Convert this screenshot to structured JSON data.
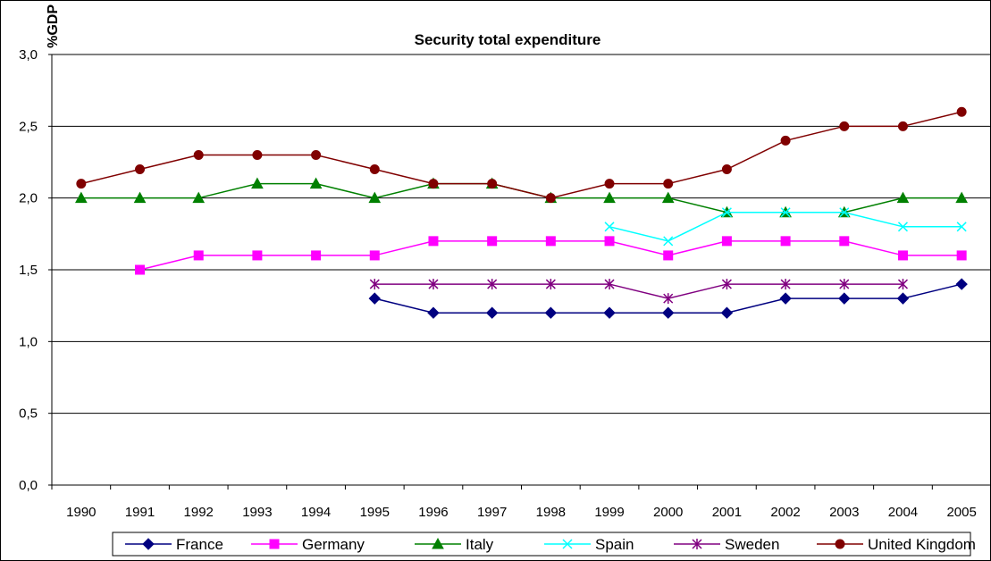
{
  "chart_data": {
    "type": "line",
    "title": "Security total expenditure",
    "ylabel": "%GDP",
    "xlabel": "",
    "ylim": [
      0,
      3.0
    ],
    "yticks": [
      "0,0",
      "0,5",
      "1,0",
      "1,5",
      "2,0",
      "2,5",
      "3,0"
    ],
    "ytick_values": [
      0,
      0.5,
      1.0,
      1.5,
      2.0,
      2.5,
      3.0
    ],
    "grid": "horizontal",
    "legend_position": "bottom",
    "x": [
      "1990",
      "1991",
      "1992",
      "1993",
      "1994",
      "1995",
      "1996",
      "1997",
      "1998",
      "1999",
      "2000",
      "2001",
      "2002",
      "2003",
      "2004",
      "2005"
    ],
    "series": [
      {
        "name": "France",
        "color": "#000080",
        "marker": "diamond",
        "values": [
          null,
          null,
          null,
          null,
          null,
          1.3,
          1.2,
          1.2,
          1.2,
          1.2,
          1.2,
          1.2,
          1.3,
          1.3,
          1.3,
          1.4
        ]
      },
      {
        "name": "Germany",
        "color": "#ff00ff",
        "marker": "square",
        "values": [
          null,
          1.5,
          1.6,
          1.6,
          1.6,
          1.6,
          1.7,
          1.7,
          1.7,
          1.7,
          1.6,
          1.7,
          1.7,
          1.7,
          1.6,
          1.6
        ]
      },
      {
        "name": "Italy",
        "color": "#008000",
        "marker": "triangle",
        "values": [
          2.0,
          2.0,
          2.0,
          2.1,
          2.1,
          2.0,
          2.1,
          2.1,
          2.0,
          2.0,
          2.0,
          1.9,
          1.9,
          1.9,
          2.0,
          2.0
        ]
      },
      {
        "name": "Spain",
        "color": "#00ffff",
        "marker": "x",
        "values": [
          null,
          null,
          null,
          null,
          null,
          null,
          null,
          null,
          null,
          1.8,
          1.7,
          1.9,
          1.9,
          1.9,
          1.8,
          1.8
        ]
      },
      {
        "name": "Sweden",
        "color": "#800080",
        "marker": "star",
        "values": [
          null,
          null,
          null,
          null,
          null,
          1.4,
          1.4,
          1.4,
          1.4,
          1.4,
          1.3,
          1.4,
          1.4,
          1.4,
          1.4,
          null
        ]
      },
      {
        "name": "United Kingdom",
        "color": "#800000",
        "marker": "circle",
        "values": [
          2.1,
          2.2,
          2.3,
          2.3,
          2.3,
          2.2,
          2.1,
          2.1,
          2.0,
          2.1,
          2.1,
          2.2,
          2.4,
          2.5,
          2.5,
          2.6
        ]
      }
    ]
  }
}
